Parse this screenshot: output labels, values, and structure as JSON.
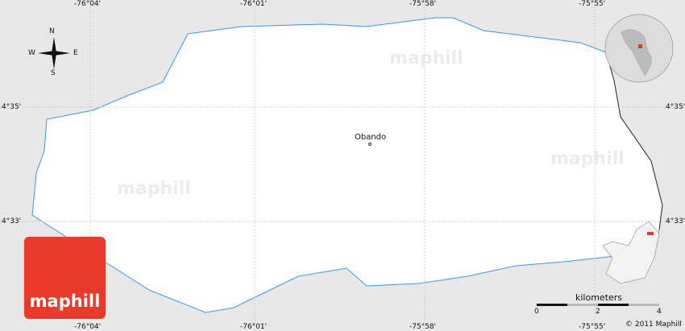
{
  "place_label": "Obando",
  "longitude_ticks": [
    "-76°04'",
    "-76°01'",
    "-75°58'",
    "-75°55'"
  ],
  "latitude_ticks": [
    "4°35'",
    "4°33'"
  ],
  "compass": {
    "n": "N",
    "s": "S",
    "e": "E",
    "w": "W"
  },
  "scale": {
    "unit": "kilometers",
    "ticks": [
      "0",
      "2",
      "4"
    ]
  },
  "copyright": "© 2011 Maphill",
  "logo": "maphill",
  "watermark": "maphill",
  "colors": {
    "border": "#3399ff",
    "logo": "#e8392b",
    "highlight": "#ee3322"
  }
}
